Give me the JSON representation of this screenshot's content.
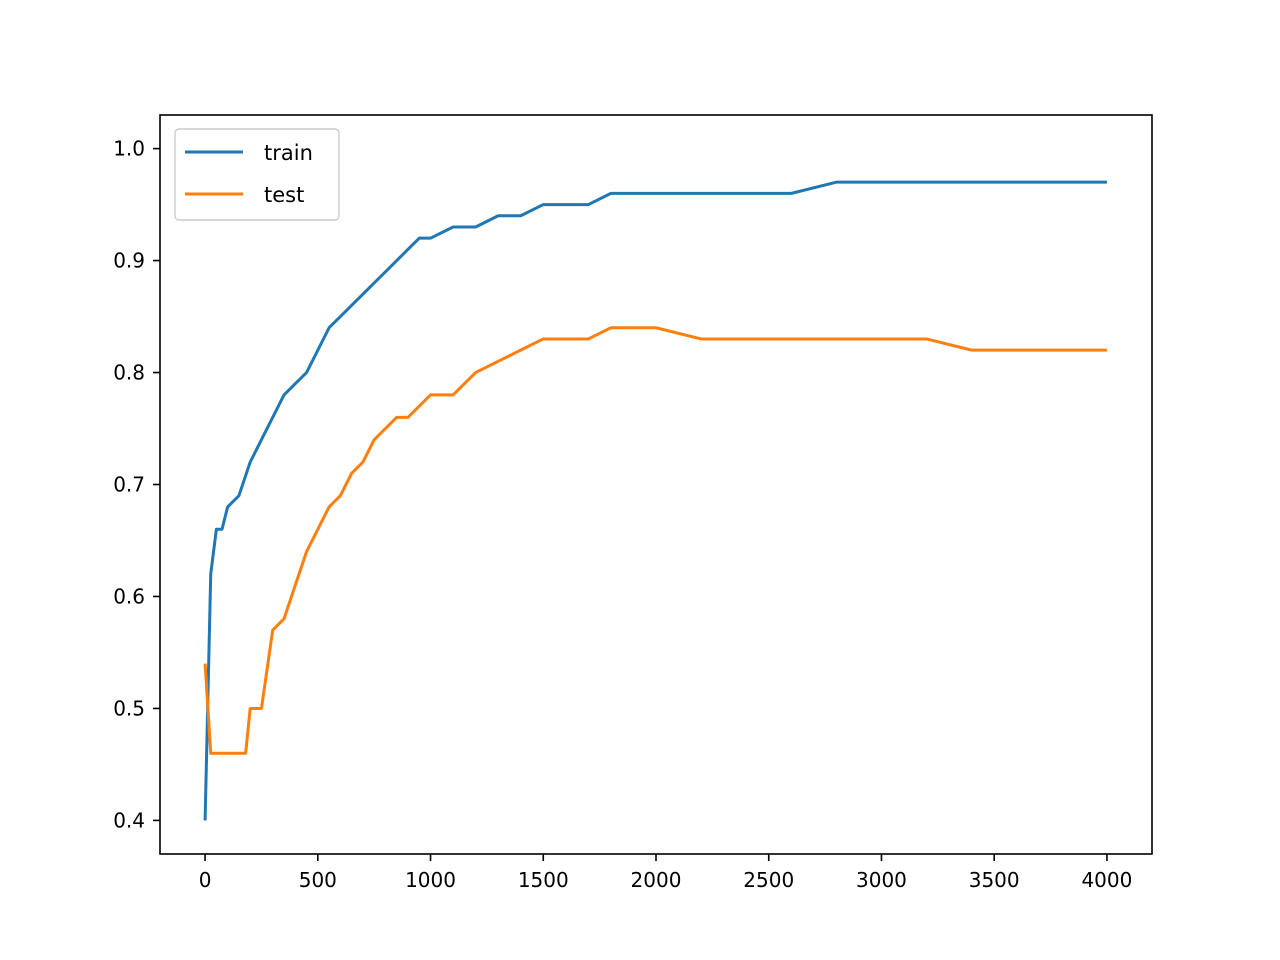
{
  "chart_data": {
    "type": "line",
    "title": "",
    "xlabel": "",
    "ylabel": "",
    "xlim": [
      -200,
      4200
    ],
    "ylim": [
      0.37,
      1.03
    ],
    "x_ticks": [
      0,
      500,
      1000,
      1500,
      2000,
      2500,
      3000,
      3500,
      4000
    ],
    "y_ticks": [
      0.4,
      0.5,
      0.6,
      0.7,
      0.8,
      0.9,
      1.0
    ],
    "x_tick_labels": [
      "0",
      "500",
      "1000",
      "1500",
      "2000",
      "2500",
      "3000",
      "3500",
      "4000"
    ],
    "y_tick_labels": [
      "0.4",
      "0.5",
      "0.6",
      "0.7",
      "0.8",
      "0.9",
      "1.0"
    ],
    "grid": false,
    "legend": {
      "position": "top-left"
    },
    "series": [
      {
        "name": "train",
        "color": "#1f77b4",
        "x": [
          0,
          25,
          50,
          75,
          100,
          150,
          200,
          250,
          300,
          350,
          400,
          450,
          500,
          550,
          600,
          650,
          700,
          750,
          800,
          850,
          900,
          950,
          1000,
          1100,
          1200,
          1300,
          1400,
          1500,
          1600,
          1700,
          1800,
          1900,
          2000,
          2200,
          2400,
          2600,
          2800,
          3000,
          3200,
          3400,
          3600,
          3800,
          4000
        ],
        "y": [
          0.4,
          0.62,
          0.66,
          0.66,
          0.68,
          0.69,
          0.72,
          0.74,
          0.76,
          0.78,
          0.79,
          0.8,
          0.82,
          0.84,
          0.85,
          0.86,
          0.87,
          0.88,
          0.89,
          0.9,
          0.91,
          0.92,
          0.92,
          0.93,
          0.93,
          0.94,
          0.94,
          0.95,
          0.95,
          0.95,
          0.96,
          0.96,
          0.96,
          0.96,
          0.96,
          0.96,
          0.97,
          0.97,
          0.97,
          0.97,
          0.97,
          0.97,
          0.97
        ]
      },
      {
        "name": "test",
        "color": "#ff7f0e",
        "x": [
          0,
          25,
          50,
          100,
          150,
          180,
          200,
          250,
          300,
          350,
          400,
          450,
          500,
          550,
          600,
          650,
          700,
          750,
          800,
          850,
          900,
          950,
          1000,
          1100,
          1200,
          1300,
          1400,
          1500,
          1600,
          1700,
          1800,
          1900,
          2000,
          2200,
          2400,
          2600,
          2800,
          3000,
          3200,
          3400,
          3600,
          3800,
          4000
        ],
        "y": [
          0.54,
          0.46,
          0.46,
          0.46,
          0.46,
          0.46,
          0.5,
          0.5,
          0.57,
          0.58,
          0.61,
          0.64,
          0.66,
          0.68,
          0.69,
          0.71,
          0.72,
          0.74,
          0.75,
          0.76,
          0.76,
          0.77,
          0.78,
          0.78,
          0.8,
          0.81,
          0.82,
          0.83,
          0.83,
          0.83,
          0.84,
          0.84,
          0.84,
          0.83,
          0.83,
          0.83,
          0.83,
          0.83,
          0.83,
          0.82,
          0.82,
          0.82,
          0.82
        ]
      }
    ]
  }
}
